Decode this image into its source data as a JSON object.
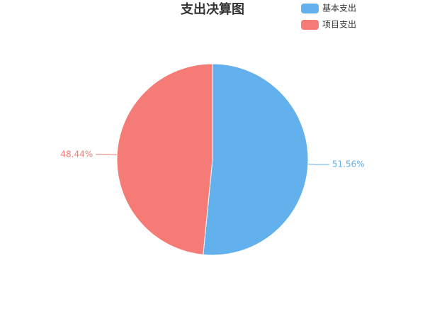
{
  "chart_data": {
    "type": "pie",
    "title": "支出决算图",
    "categories": [
      "基本支出",
      "项目支出"
    ],
    "values": [
      51.56,
      48.44
    ],
    "value_labels": [
      "51.56%",
      "48.44%"
    ],
    "colors": [
      "#62b0ec",
      "#f47b76"
    ],
    "legend": "top-right"
  }
}
